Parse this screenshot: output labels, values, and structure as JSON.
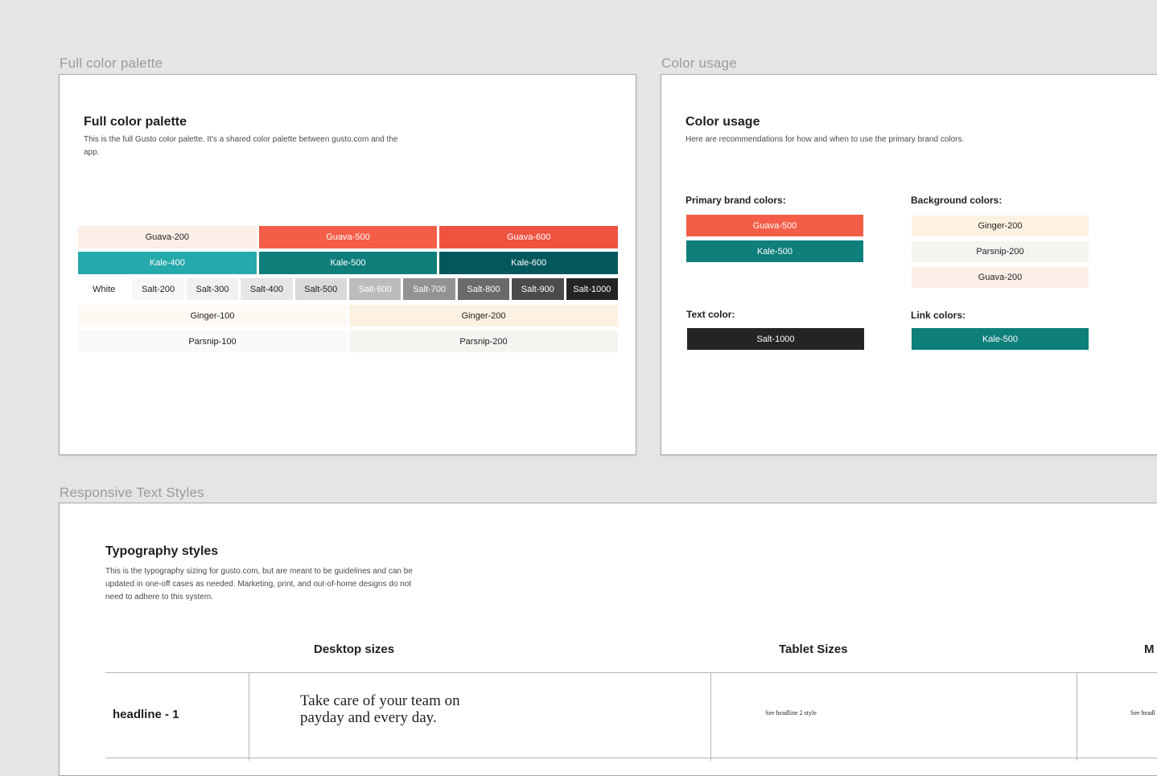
{
  "palette_frame": {
    "label": "Full color palette",
    "title": "Full color palette",
    "description": "This is the full Gusto color palette. It's a shared color palette between gusto.com and the app.",
    "rows": [
      [
        {
          "name": "Guava-200",
          "bg": "#fdeee8",
          "fg": "#1f1f1f"
        },
        {
          "name": "Guava-500",
          "bg": "#f45d48",
          "fg": "#ffffff"
        },
        {
          "name": "Guava-600",
          "bg": "#ef5340",
          "fg": "#ffffff"
        }
      ],
      [
        {
          "name": "Kale-400",
          "bg": "#26a9aa",
          "fg": "#ffffff"
        },
        {
          "name": "Kale-500",
          "bg": "#0f7f7c",
          "fg": "#ffffff"
        },
        {
          "name": "Kale-600",
          "bg": "#03585e",
          "fg": "#ffffff"
        }
      ],
      [
        {
          "name": "White",
          "bg": "#ffffff",
          "fg": "#1f1f1f"
        },
        {
          "name": "Salt-200",
          "bg": "#f7f7f7",
          "fg": "#1f1f1f"
        },
        {
          "name": "Salt-300",
          "bg": "#f1f1f1",
          "fg": "#1f1f1f"
        },
        {
          "name": "Salt-400",
          "bg": "#e6e6e6",
          "fg": "#1f1f1f"
        },
        {
          "name": "Salt-500",
          "bg": "#d9d9d9",
          "fg": "#1f1f1f"
        },
        {
          "name": "Salt-600",
          "bg": "#bcbcbc",
          "fg": "#ffffff"
        },
        {
          "name": "Salt-700",
          "bg": "#929292",
          "fg": "#ffffff"
        },
        {
          "name": "Salt-800",
          "bg": "#6a6a6a",
          "fg": "#ffffff"
        },
        {
          "name": "Salt-900",
          "bg": "#4b4b4e",
          "fg": "#ffffff"
        },
        {
          "name": "Salt-1000",
          "bg": "#242424",
          "fg": "#ffffff"
        }
      ],
      [
        {
          "name": "Ginger-100",
          "bg": "#fefaf3",
          "fg": "#1f1f1f"
        },
        {
          "name": "Ginger-200",
          "bg": "#fdf1e2",
          "fg": "#1f1f1f"
        }
      ],
      [
        {
          "name": "Parsnip-100",
          "bg": "#fafafa",
          "fg": "#1f1f1f"
        },
        {
          "name": "Parsnip-200",
          "bg": "#f4f4f1",
          "fg": "#1f1f1f"
        }
      ]
    ]
  },
  "usage_frame": {
    "label": "Color usage",
    "title": "Color usage",
    "description": "Here are recommendations for how and when to use the primary brand colors.",
    "primary": {
      "label": "Primary brand colors:",
      "swatches": [
        {
          "name": "Guava-500",
          "bg": "#f45d48",
          "fg": "#ffffff"
        },
        {
          "name": "Kale-500",
          "bg": "#0f7f7c",
          "fg": "#ffffff"
        }
      ]
    },
    "background": {
      "label": "Background colors:",
      "swatches": [
        {
          "name": "Ginger-200",
          "bg": "#fdf1e2",
          "fg": "#1f1f1f"
        },
        {
          "name": "Parsnip-200",
          "bg": "#f4f4f1",
          "fg": "#1f1f1f"
        },
        {
          "name": "Guava-200",
          "bg": "#fdeee8",
          "fg": "#1f1f1f"
        }
      ]
    },
    "text": {
      "label": "Text color:",
      "swatches": [
        {
          "name": "Salt-1000",
          "bg": "#242424",
          "fg": "#ffffff"
        }
      ]
    },
    "link": {
      "label": "Link colors:",
      "swatches": [
        {
          "name": "Kale-500",
          "bg": "#0f7f7c",
          "fg": "#ffffff"
        }
      ]
    }
  },
  "typography_frame": {
    "label": "Responsive Text Styles",
    "title": "Typography styles",
    "description": "This is the typography sizing for gusto.com, but are meant to be guidelines and can be updated in one-off cases as needed. Marketing, print, and out-of-home designs do not need to adhere to this system.",
    "columns": {
      "desktop": "Desktop sizes",
      "tablet": "Tablet Sizes",
      "mobile": "M"
    },
    "rows": [
      {
        "style": "headline - 1",
        "desktop_sample": "Take care of your team on payday and every day.",
        "tablet_sample": "See headline 2 style",
        "mobile_sample": "See headl"
      }
    ]
  }
}
